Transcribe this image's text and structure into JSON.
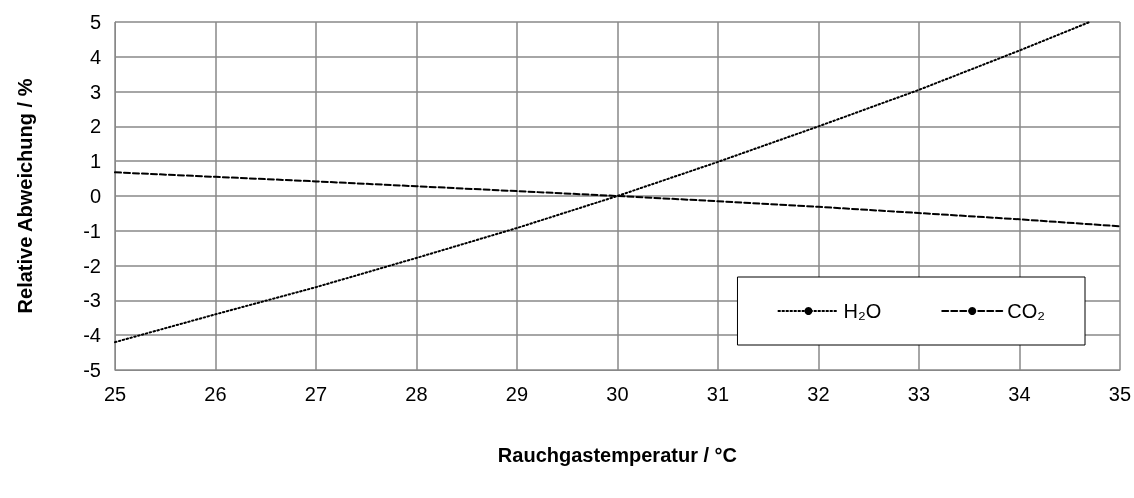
{
  "chart_data": {
    "type": "line",
    "xlabel": "Rauchgastemperatur / °C",
    "ylabel": "Relative Abweichung / %",
    "xlim": [
      25,
      35
    ],
    "xticks": [
      25,
      26,
      27,
      28,
      29,
      30,
      31,
      32,
      33,
      34,
      35
    ],
    "ylim": [
      -5,
      5
    ],
    "yticks": [
      -5,
      -4,
      -3,
      -2,
      -1,
      0,
      1,
      2,
      3,
      4,
      5
    ],
    "grid": true,
    "legend": "bottom right",
    "marker": "none",
    "series": [
      {
        "name": "H₂O",
        "color": "#000000",
        "line_style": "dotted",
        "x": [
          25,
          26,
          27,
          28,
          29,
          30,
          31,
          32,
          33,
          34,
          34.7
        ],
        "values": [
          -4.2,
          -3.4,
          -2.62,
          -1.78,
          -0.92,
          0,
          0.98,
          2.0,
          3.05,
          4.18,
          5.0
        ]
      },
      {
        "name": "CO₂",
        "color": "#000000",
        "line_style": "dashed",
        "x": [
          25,
          26,
          27,
          28,
          29,
          30,
          31,
          32,
          33,
          34,
          35
        ],
        "values": [
          0.68,
          0.55,
          0.42,
          0.28,
          0.14,
          0,
          -0.15,
          -0.31,
          -0.49,
          -0.67,
          -0.87
        ]
      }
    ]
  }
}
